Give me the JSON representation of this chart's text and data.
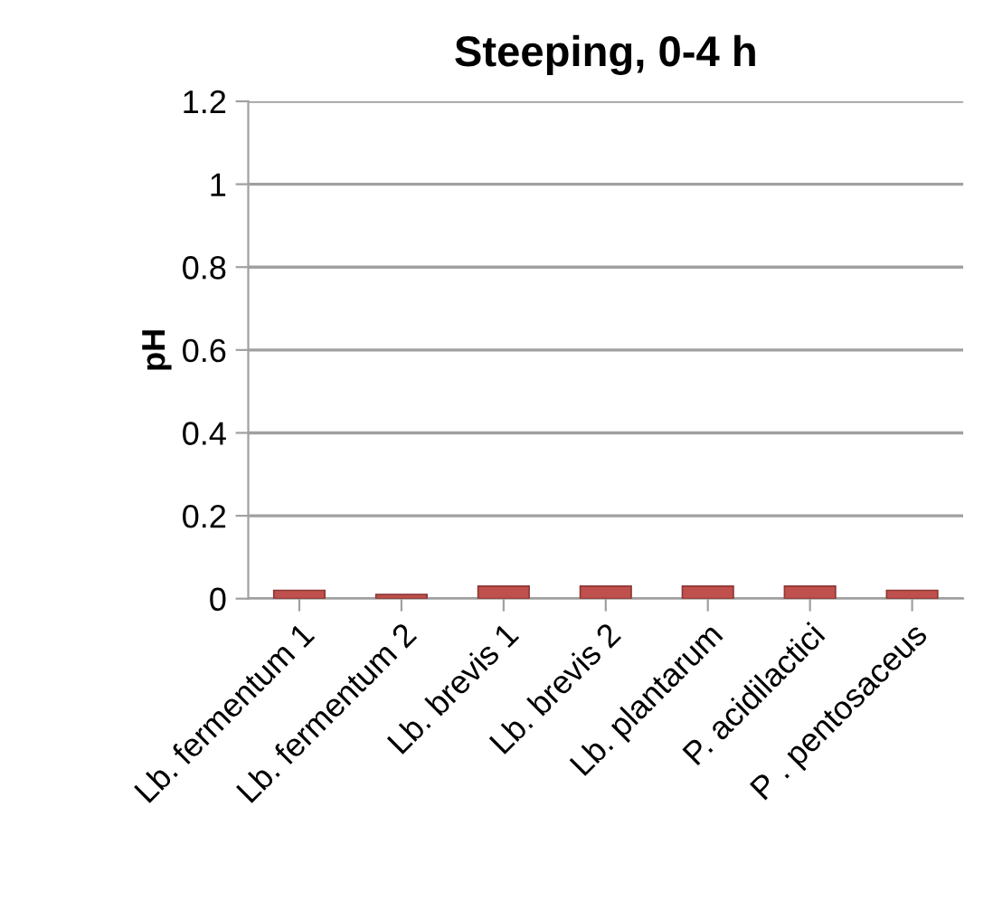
{
  "chart_data": {
    "type": "bar",
    "title": "Steeping, 0-4 h",
    "ylabel": "pH",
    "categories": [
      "Lb. fermentum 1",
      "Lb. fermentum 2",
      "Lb. brevis 1",
      "Lb. brevis 2",
      "Lb. plantarum",
      "P. acidilactici",
      "P . pentosaceus"
    ],
    "values": [
      0.02,
      0.01,
      0.03,
      0.03,
      0.03,
      0.03,
      0.02
    ],
    "color": "#c0504d",
    "ylim": [
      0,
      1.2
    ],
    "yticks": [
      0,
      0.2,
      0.4,
      0.6,
      0.8,
      1,
      1.2
    ],
    "grid": "y",
    "legend": false
  }
}
